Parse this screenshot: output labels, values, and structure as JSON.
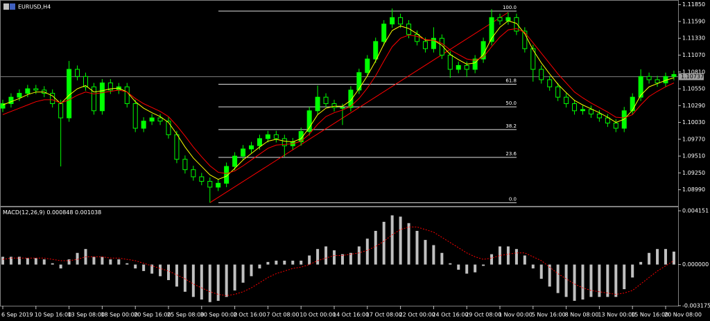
{
  "chart_data": [
    {
      "type": "candlestick",
      "title": "EURUSD,H4",
      "categories": [
        "6 Sep 2019",
        null,
        null,
        null,
        "10 Sep 16:00",
        null,
        null,
        null,
        "13 Sep 08:00",
        null,
        null,
        null,
        "18 Sep 00:00",
        null,
        null,
        null,
        "20 Sep 16:00",
        null,
        null,
        null,
        "25 Sep 08:00",
        null,
        null,
        null,
        "30 Sep 00:00",
        null,
        null,
        null,
        "2 Oct 16:00",
        null,
        null,
        null,
        "7 Oct 08:00",
        null,
        null,
        null,
        "10 Oct 00:00",
        null,
        null,
        null,
        "14 Oct 16:00",
        null,
        null,
        null,
        "17 Oct 08:00",
        null,
        null,
        null,
        "22 Oct 00:00",
        null,
        null,
        null,
        "24 Oct 16:00",
        null,
        null,
        null,
        "29 Oct 08:00",
        null,
        null,
        null,
        "1 Nov 00:00",
        null,
        null,
        null,
        "5 Nov 16:00",
        null,
        null,
        null,
        "8 Nov 08:00",
        null,
        null,
        null,
        "13 Nov 00:00",
        null,
        null,
        null,
        "15 Nov 16:00",
        null,
        null,
        null,
        "20 Nov 08:00",
        null
      ],
      "open": [
        1.1025,
        1.1032,
        1.1042,
        1.1048,
        1.1055,
        1.1053,
        1.1048,
        1.1032,
        1.101,
        1.1085,
        1.1074,
        1.1058,
        1.1021,
        1.1064,
        1.1053,
        1.1058,
        1.1032,
        1.0994,
        1.1005,
        1.101,
        1.1005,
        1.0984,
        1.0946,
        1.093,
        1.0919,
        1.0912,
        1.0903,
        1.0909,
        1.0935,
        1.0951,
        1.0962,
        1.0967,
        1.0978,
        1.0984,
        1.0978,
        1.0967,
        1.0973,
        1.0989,
        1.1021,
        1.1042,
        1.1032,
        1.1026,
        1.1026,
        1.1053,
        1.108,
        1.1101,
        1.1128,
        1.1155,
        1.1165,
        1.1155,
        1.1139,
        1.1128,
        1.1117,
        1.1133,
        1.1107,
        1.1085,
        1.1091,
        1.1085,
        1.1101,
        1.1128,
        1.1165,
        1.116,
        1.1165,
        1.1144,
        1.1117,
        1.1085,
        1.1069,
        1.1058,
        1.1042,
        1.1032,
        1.1021,
        1.1023,
        1.1016,
        1.101,
        1.1002,
        1.0994,
        1.1021,
        1.1042,
        1.1074,
        1.1069,
        1.1064,
        1.1074
      ],
      "high": [
        1.1038,
        1.1048,
        1.1054,
        1.1061,
        1.1061,
        1.1059,
        1.1054,
        1.1038,
        1.1098,
        1.1091,
        1.108,
        1.1064,
        1.107,
        1.107,
        1.1064,
        1.1064,
        1.1038,
        1.1011,
        1.1016,
        1.1016,
        1.1011,
        1.099,
        1.0952,
        1.0936,
        1.0925,
        1.0918,
        1.0915,
        1.0941,
        1.0957,
        1.0968,
        1.0973,
        1.0984,
        1.099,
        1.099,
        1.0984,
        1.0979,
        1.0995,
        1.1027,
        1.106,
        1.1048,
        1.1038,
        1.1032,
        1.1059,
        1.1086,
        1.1107,
        1.1134,
        1.1161,
        1.1179,
        1.1171,
        1.1161,
        1.1145,
        1.1134,
        1.115,
        1.1139,
        1.1113,
        1.1097,
        1.1097,
        1.1107,
        1.1134,
        1.1178,
        1.1171,
        1.1173,
        1.1171,
        1.115,
        1.1123,
        1.1091,
        1.1075,
        1.1064,
        1.1048,
        1.1038,
        1.1029,
        1.1029,
        1.1022,
        1.1016,
        1.1008,
        1.1027,
        1.1048,
        1.1085,
        1.108,
        1.1075,
        1.108,
        1.1083
      ],
      "low": [
        1.1019,
        1.1026,
        1.1036,
        1.1042,
        1.1047,
        1.1042,
        1.1026,
        1.0935,
        1.1004,
        1.1068,
        1.1052,
        1.1015,
        1.1015,
        1.1047,
        1.1047,
        1.1026,
        1.0988,
        1.0988,
        1.0999,
        1.0999,
        1.0978,
        1.094,
        1.0924,
        1.0913,
        1.0906,
        1.0879,
        1.0897,
        1.0903,
        1.0929,
        1.0945,
        1.0956,
        1.0961,
        1.0972,
        1.0972,
        1.095,
        1.0961,
        1.0967,
        1.0983,
        1.1015,
        1.1026,
        1.102,
        1.0999,
        1.102,
        1.1047,
        1.1074,
        1.1095,
        1.1122,
        1.1149,
        1.1149,
        1.1133,
        1.1122,
        1.1111,
        1.1111,
        1.1101,
        1.1072,
        1.1079,
        1.1073,
        1.1079,
        1.1095,
        1.1122,
        1.1154,
        1.1154,
        1.1138,
        1.1111,
        1.1066,
        1.1063,
        1.1052,
        1.1036,
        1.1026,
        1.1015,
        1.1015,
        1.101,
        1.1004,
        1.0996,
        1.0988,
        1.0988,
        1.1015,
        1.1036,
        1.1063,
        1.1058,
        1.1058,
        1.1068
      ],
      "close": [
        1.1032,
        1.1042,
        1.1048,
        1.1055,
        1.1053,
        1.1048,
        1.1032,
        1.101,
        1.1085,
        1.1074,
        1.1058,
        1.1021,
        1.1064,
        1.1053,
        1.1058,
        1.1032,
        1.0994,
        1.1005,
        1.101,
        1.1005,
        1.0984,
        1.0946,
        1.093,
        1.0919,
        1.0912,
        1.0903,
        1.0909,
        1.0935,
        1.0951,
        1.0962,
        1.0967,
        1.0978,
        1.0984,
        1.0978,
        1.0967,
        1.0973,
        1.0989,
        1.1021,
        1.1042,
        1.1032,
        1.1026,
        1.1026,
        1.1053,
        1.108,
        1.1101,
        1.1128,
        1.1155,
        1.1165,
        1.1155,
        1.1139,
        1.1128,
        1.1117,
        1.1133,
        1.1107,
        1.1085,
        1.1091,
        1.1085,
        1.1101,
        1.1128,
        1.1165,
        1.116,
        1.1165,
        1.1144,
        1.1117,
        1.1085,
        1.1069,
        1.1058,
        1.1042,
        1.1032,
        1.1021,
        1.1023,
        1.1016,
        1.101,
        1.1002,
        1.0994,
        1.1021,
        1.1042,
        1.1074,
        1.1069,
        1.1064,
        1.1074,
        1.1077
      ],
      "candle_color": "#00ff00",
      "ma_fast": {
        "color": "#ffff00",
        "values": [
          1.103,
          1.1035,
          1.104,
          1.1046,
          1.105,
          1.105,
          1.1044,
          1.1032,
          1.1045,
          1.1055,
          1.106,
          1.105,
          1.1052,
          1.1055,
          1.1056,
          1.105,
          1.1035,
          1.1025,
          1.1018,
          1.1012,
          1.1003,
          1.0985,
          1.0965,
          1.0948,
          1.0935,
          1.0922,
          1.0915,
          1.092,
          1.0932,
          1.0945,
          1.0955,
          1.0965,
          1.0974,
          1.0977,
          1.0974,
          1.0973,
          1.0978,
          1.0995,
          1.1015,
          1.1025,
          1.1028,
          1.1028,
          1.1037,
          1.1055,
          1.1075,
          1.1098,
          1.1124,
          1.1145,
          1.1152,
          1.1148,
          1.114,
          1.113,
          1.113,
          1.1122,
          1.1108,
          1.11,
          1.1093,
          1.1095,
          1.1108,
          1.1133,
          1.115,
          1.116,
          1.1156,
          1.114,
          1.1115,
          1.1095,
          1.1078,
          1.1062,
          1.1049,
          1.1037,
          1.103,
          1.1024,
          1.1018,
          1.1011,
          1.1003,
          1.1008,
          1.1022,
          1.1045,
          1.1058,
          1.1063,
          1.1068,
          1.1072
        ]
      },
      "ma_slow": {
        "color": "#ff0000",
        "values": [
          1.1015,
          1.102,
          1.1025,
          1.103,
          1.1035,
          1.1038,
          1.1038,
          1.1033,
          1.1038,
          1.1045,
          1.105,
          1.1047,
          1.1049,
          1.1051,
          1.1053,
          1.105,
          1.104,
          1.1032,
          1.1026,
          1.102,
          1.1012,
          1.0998,
          1.0982,
          1.0965,
          1.095,
          1.0936,
          1.0926,
          1.0924,
          1.0928,
          1.0936,
          1.0945,
          1.0954,
          1.0963,
          1.0968,
          1.0969,
          1.097,
          1.0974,
          1.0985,
          1.1,
          1.1012,
          1.1018,
          1.1022,
          1.1028,
          1.104,
          1.1056,
          1.1075,
          1.1098,
          1.112,
          1.1133,
          1.1138,
          1.1136,
          1.1131,
          1.113,
          1.1125,
          1.1115,
          1.1108,
          1.1101,
          1.1099,
          1.1104,
          1.112,
          1.1135,
          1.1146,
          1.1148,
          1.1142,
          1.1126,
          1.111,
          1.1094,
          1.1078,
          1.1064,
          1.105,
          1.1041,
          1.1033,
          1.1026,
          1.1019,
          1.1011,
          1.101,
          1.1015,
          1.103,
          1.1043,
          1.1051,
          1.1058,
          1.1064
        ]
      },
      "current_price": 1.10737,
      "fibonacci": [
        {
          "value": 1.1175,
          "label": "100.0"
        },
        {
          "value": 1.1062,
          "label": "61.8"
        },
        {
          "value": 1.1027,
          "label": "50.0"
        },
        {
          "value": 1.0992,
          "label": "38.2"
        },
        {
          "value": 1.0949,
          "label": "23.6"
        },
        {
          "value": 1.0879,
          "label": "0.0"
        }
      ],
      "ylim": [
        1.0874,
        1.119
      ],
      "yticks": [
        {
          "value": 1.1185,
          "label": "1.11850"
        },
        {
          "value": 1.1159,
          "label": "1.11590"
        },
        {
          "value": 1.1133,
          "label": "1.11330"
        },
        {
          "value": 1.1107,
          "label": "1.11070"
        },
        {
          "value": 1.1081,
          "label": "1.10810"
        },
        {
          "value": 1.1055,
          "label": "1.10550"
        },
        {
          "value": 1.1029,
          "label": "1.10290"
        },
        {
          "value": 1.1003,
          "label": "1.10030"
        },
        {
          "value": 1.0977,
          "label": "1.09770"
        },
        {
          "value": 1.0951,
          "label": "1.09510"
        },
        {
          "value": 1.0925,
          "label": "1.09250"
        },
        {
          "value": 1.0899,
          "label": "1.08990"
        }
      ]
    },
    {
      "type": "macd",
      "title": "MACD(12,26,9)",
      "title_values": [
        0.000848,
        0.001038
      ],
      "histogram": {
        "color": "#c0c0c0",
        "values": [
          0.0006,
          0.0006,
          0.0006,
          0.0005,
          0.0005,
          0.0004,
          0.0001,
          -0.0003,
          0.0004,
          0.0009,
          0.0012,
          0.0006,
          0.0006,
          0.0004,
          0.0004,
          0.0001,
          -0.0003,
          -0.0005,
          -0.0007,
          -0.0009,
          -0.0012,
          -0.0017,
          -0.0021,
          -0.0025,
          -0.0027,
          -0.0029,
          -0.0028,
          -0.0025,
          -0.002,
          -0.0014,
          -0.0009,
          -0.0003,
          0.0002,
          0.0003,
          0.0003,
          0.0003,
          0.0003,
          0.0007,
          0.0012,
          0.0014,
          0.0011,
          0.0008,
          0.0009,
          0.0014,
          0.002,
          0.0026,
          0.0033,
          0.0038,
          0.0037,
          0.0032,
          0.0026,
          0.0019,
          0.0015,
          0.0009,
          0.0001,
          -0.0004,
          -0.0007,
          -0.0006,
          -0.0001,
          0.0008,
          0.0014,
          0.0014,
          0.0012,
          0.0007,
          -0.0003,
          -0.0011,
          -0.0017,
          -0.0022,
          -0.0025,
          -0.0028,
          -0.0027,
          -0.0025,
          -0.0025,
          -0.0025,
          -0.0025,
          -0.0019,
          -0.001,
          0.0002,
          0.0009,
          0.0012,
          0.0012,
          0.001
        ]
      },
      "signal": {
        "color": "#ff0000",
        "values": [
          0.0004,
          0.0005,
          0.0005,
          0.0005,
          0.0005,
          0.0005,
          0.0004,
          0.0003,
          0.0003,
          0.0004,
          0.0006,
          0.0006,
          0.0006,
          0.0005,
          0.0005,
          0.0004,
          0.0003,
          0.0001,
          -0.0001,
          -0.0003,
          -0.0005,
          -0.0008,
          -0.0011,
          -0.0015,
          -0.0018,
          -0.0021,
          -0.0023,
          -0.0024,
          -0.0023,
          -0.0021,
          -0.0018,
          -0.0014,
          -0.001,
          -0.0007,
          -0.0005,
          -0.0003,
          -0.0002,
          0.0,
          0.0003,
          0.0005,
          0.0007,
          0.0007,
          0.0008,
          0.0009,
          0.0011,
          0.0014,
          0.0018,
          0.0023,
          0.0027,
          0.0029,
          0.0029,
          0.0027,
          0.0025,
          0.0021,
          0.0017,
          0.0013,
          0.0009,
          0.0006,
          0.0004,
          0.0005,
          0.0007,
          0.0008,
          0.0009,
          0.0009,
          0.0006,
          0.0003,
          -0.0002,
          -0.0007,
          -0.0011,
          -0.0015,
          -0.0018,
          -0.002,
          -0.0021,
          -0.0022,
          -0.0023,
          -0.0022,
          -0.002,
          -0.0015,
          -0.001,
          -0.0005,
          -0.0001,
          0.0003
        ]
      },
      "ylim": [
        -0.00318,
        0.00442
      ],
      "yticks": [
        0.004151,
        {
          "value": 0,
          "label": "0.000000"
        },
        -0.003175
      ]
    }
  ]
}
